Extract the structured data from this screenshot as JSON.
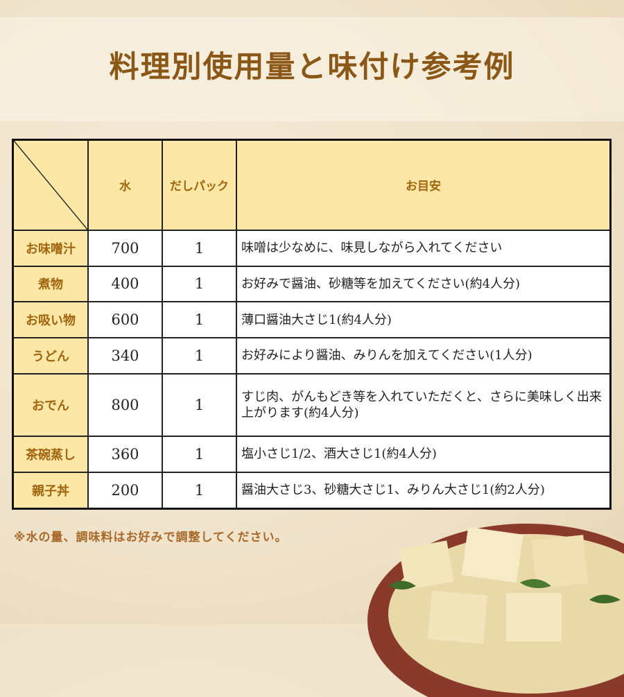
{
  "title": "料理別使用量と味付け参考例",
  "table": {
    "headers": [
      "",
      "水",
      "だしパック",
      "お目安"
    ],
    "rows": [
      {
        "name": "お味噌汁",
        "water": "700",
        "pack": "1",
        "memo": "味噌は少なめに、味見しながら入れてください"
      },
      {
        "name": "煮物",
        "water": "400",
        "pack": "1",
        "memo": "お好みで醤油、砂糖等を加えてください(約4人分)"
      },
      {
        "name": "お吸い物",
        "water": "600",
        "pack": "1",
        "memo": "薄口醤油大さじ1(約4人分)"
      },
      {
        "name": "うどん",
        "water": "340",
        "pack": "1",
        "memo": "お好みにより醤油、みりんを加えてください(1人分)"
      },
      {
        "name": "おでん",
        "water": "800",
        "pack": "1",
        "memo": "すじ肉、がんもどき等を入れていただくと、さらに美味しく出来上がります(約4人分)"
      },
      {
        "name": "茶碗蒸し",
        "water": "360",
        "pack": "1",
        "memo": "塩小さじ1/2、酒大さじ1(約4人分)"
      },
      {
        "name": "親子丼",
        "water": "200",
        "pack": "1",
        "memo": "醤油大さじ3、砂糖大さじ1、みりん大さじ1(約2人分)"
      }
    ]
  },
  "note": "※水の量、調味料はお好みで調整してください。",
  "colors": {
    "title": "#8a5716",
    "header_bg": "#fde7a6",
    "header_text": "#a0650e",
    "note": "#a8692a"
  }
}
